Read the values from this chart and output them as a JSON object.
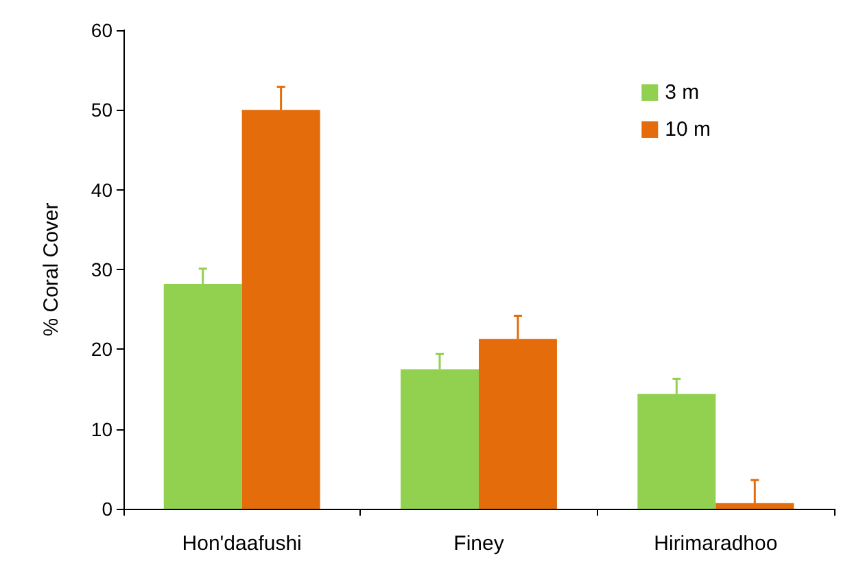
{
  "chart_data": {
    "type": "bar",
    "ylabel": "% Coral Cover",
    "categories": [
      "Hon'daafushi",
      "Finey",
      "Hirimaradhoo"
    ],
    "series": [
      {
        "name": "3 m",
        "color": "#92d050",
        "values": [
          28.2,
          17.5,
          14.4
        ],
        "errors": [
          [
            28.2,
            30.1
          ],
          [
            17.5,
            19.4
          ],
          [
            14.4,
            16.3
          ]
        ]
      },
      {
        "name": "10 m",
        "color": "#e46c0a",
        "values": [
          50.0,
          21.3,
          0.7
        ],
        "errors": [
          [
            50.0,
            52.9
          ],
          [
            21.3,
            24.2
          ],
          [
            0.7,
            3.6
          ]
        ]
      }
    ],
    "ylim": [
      0,
      60
    ],
    "yticks": [
      0,
      10,
      20,
      30,
      40,
      50,
      60
    ],
    "grid": false,
    "legend": "top right"
  }
}
